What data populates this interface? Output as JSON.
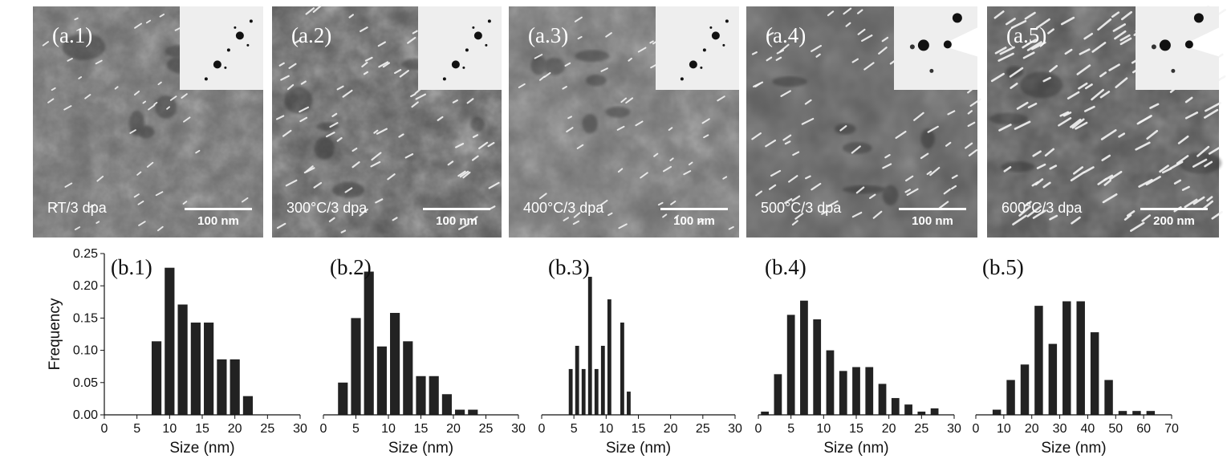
{
  "micrographs": [
    {
      "label": "(a.1)",
      "condition": "RT/3 dpa",
      "scale": "100 nm",
      "precipitate_density": 0.25,
      "inset_style": "spots",
      "brightness": 108
    },
    {
      "label": "(a.2)",
      "condition": "300°C/3 dpa",
      "scale": "100 nm",
      "precipitate_density": 0.55,
      "inset_style": "spots",
      "brightness": 88
    },
    {
      "label": "(a.3)",
      "condition": "400°C/3 dpa",
      "scale": "100 nm",
      "precipitate_density": 0.35,
      "inset_style": "spots",
      "brightness": 112
    },
    {
      "label": "(a.4)",
      "condition": "500°C/3 dpa",
      "scale": "100 nm",
      "precipitate_density": 0.6,
      "inset_style": "beamstop",
      "brightness": 92
    },
    {
      "label": "(a.5)",
      "condition": "600°C/3 dpa",
      "scale": "200 nm",
      "precipitate_density": 1.0,
      "inset_style": "beamstop",
      "brightness": 86
    }
  ],
  "chart_data": [
    {
      "type": "bar",
      "label": "(b.1)",
      "xlabel": "Size (nm)",
      "ylabel": "Frequency",
      "xlim": [
        0,
        30
      ],
      "ylim": [
        0,
        0.25
      ],
      "xticks": [
        0,
        5,
        10,
        15,
        20,
        25,
        30
      ],
      "yticks": [
        "0.00",
        "0.05",
        "0.10",
        "0.15",
        "0.20",
        "0.25"
      ],
      "bar_width": 1.5,
      "x": [
        8,
        10,
        12,
        14,
        16,
        18,
        20,
        22
      ],
      "values": [
        0.114,
        0.228,
        0.171,
        0.143,
        0.143,
        0.086,
        0.086,
        0.029
      ]
    },
    {
      "type": "bar",
      "label": "(b.2)",
      "xlabel": "Size (nm)",
      "xlim": [
        0,
        30
      ],
      "ylim": [
        0,
        0.25
      ],
      "xticks": [
        0,
        5,
        10,
        15,
        20,
        25,
        30
      ],
      "bar_width": 1.5,
      "x": [
        3,
        5,
        7,
        9,
        11,
        13,
        15,
        17,
        19,
        21,
        23
      ],
      "values": [
        0.05,
        0.15,
        0.222,
        0.106,
        0.158,
        0.114,
        0.06,
        0.06,
        0.032,
        0.008,
        0.008
      ]
    },
    {
      "type": "bar",
      "label": "(b.3)",
      "xlabel": "Size (nm)",
      "xlim": [
        0,
        30
      ],
      "ylim": [
        0,
        0.25
      ],
      "xticks": [
        0,
        5,
        10,
        15,
        20,
        25,
        30
      ],
      "bar_width": 0.6,
      "x": [
        4.5,
        5.5,
        6.5,
        7.5,
        8.5,
        9.5,
        10.5,
        12.5,
        13.5
      ],
      "values": [
        0.071,
        0.107,
        0.071,
        0.214,
        0.071,
        0.107,
        0.179,
        0.143,
        0.036
      ]
    },
    {
      "type": "bar",
      "label": "(b.4)",
      "xlabel": "Size (nm)",
      "xlim": [
        0,
        30
      ],
      "ylim": [
        0,
        0.25
      ],
      "xticks": [
        0,
        5,
        10,
        15,
        20,
        25,
        30
      ],
      "bar_width": 1.2,
      "x": [
        1,
        3,
        5,
        7,
        9,
        11,
        13,
        15,
        17,
        19,
        21,
        23,
        25,
        27
      ],
      "values": [
        0.005,
        0.063,
        0.155,
        0.177,
        0.148,
        0.1,
        0.068,
        0.074,
        0.074,
        0.048,
        0.026,
        0.016,
        0.005,
        0.01
      ]
    },
    {
      "type": "bar",
      "label": "(b.5)",
      "xlabel": "Size (nm)",
      "xlim": [
        0,
        70
      ],
      "ylim": [
        0,
        0.25
      ],
      "xticks": [
        0,
        10,
        20,
        30,
        40,
        50,
        60,
        70
      ],
      "bar_width": 3,
      "x": [
        7.5,
        12.5,
        17.5,
        22.5,
        27.5,
        32.5,
        37.5,
        42.5,
        47.5,
        52.5,
        57.5,
        62.5
      ],
      "values": [
        0.008,
        0.054,
        0.078,
        0.169,
        0.11,
        0.176,
        0.176,
        0.128,
        0.054,
        0.006,
        0.006,
        0.006
      ]
    }
  ]
}
